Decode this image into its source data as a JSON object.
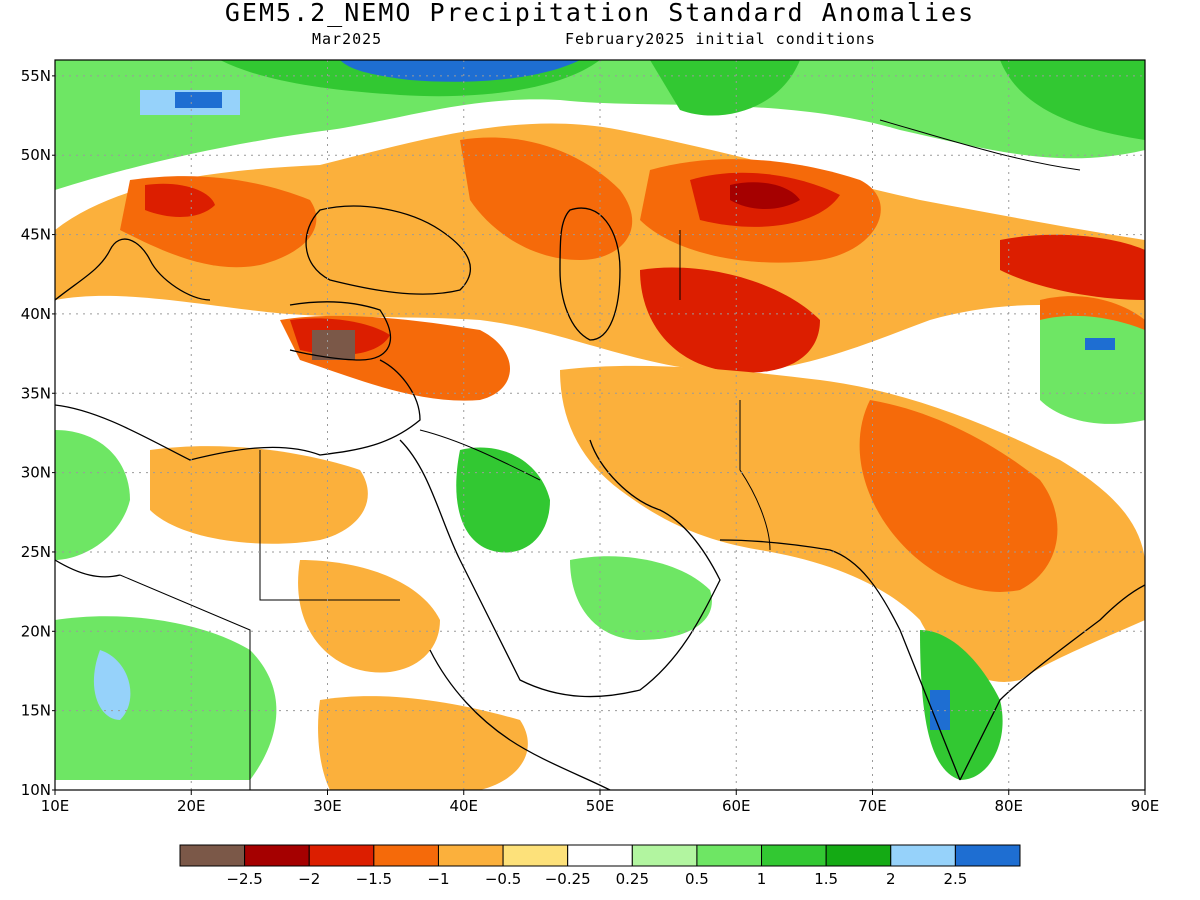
{
  "title": "GEM5.2_NEMO Precipitation Standard Anomalies",
  "subtitle_left": "Mar2025",
  "subtitle_right": "February2025 initial conditions",
  "map": {
    "lon_range": [
      10,
      90
    ],
    "lat_range": [
      10,
      56
    ],
    "lon_ticks": [
      "10E",
      "20E",
      "30E",
      "40E",
      "50E",
      "60E",
      "70E",
      "80E",
      "90E"
    ],
    "lat_ticks": [
      "55N",
      "50N",
      "45N",
      "40N",
      "35N",
      "30N",
      "25N",
      "20N",
      "15N",
      "10N"
    ]
  },
  "legend": {
    "colors": [
      "#7b5848",
      "#a50000",
      "#dc1e00",
      "#f56a0a",
      "#fbb03c",
      "#fde17a",
      "#ffffff",
      "#b2f5a0",
      "#6ee664",
      "#32c832",
      "#14aa14",
      "#96d2fa",
      "#1e6ed2"
    ],
    "labels": [
      "−2.5",
      "−2",
      "−1.5",
      "−1",
      "−0.5",
      "−0.25",
      "0.25",
      "0.5",
      "1",
      "1.5",
      "2",
      "2.5"
    ]
  },
  "chart_data": {
    "type": "heatmap",
    "title": "GEM5.2_NEMO Precipitation Standard Anomalies",
    "subtitle": [
      "Mar2025",
      "February2025 initial conditions"
    ],
    "x_axis": {
      "range": [
        10,
        90
      ],
      "unit": "degrees E",
      "ticks": [
        10,
        20,
        30,
        40,
        50,
        60,
        70,
        80,
        90
      ]
    },
    "y_axis": {
      "range": [
        10,
        56
      ],
      "unit": "degrees N",
      "ticks": [
        10,
        15,
        20,
        25,
        30,
        35,
        40,
        45,
        50,
        55
      ]
    },
    "color_scale_bounds": [
      -2.5,
      -2,
      -1.5,
      -1,
      -0.5,
      -0.25,
      0.25,
      0.5,
      1,
      1.5,
      2,
      2.5
    ],
    "grid": true
  }
}
